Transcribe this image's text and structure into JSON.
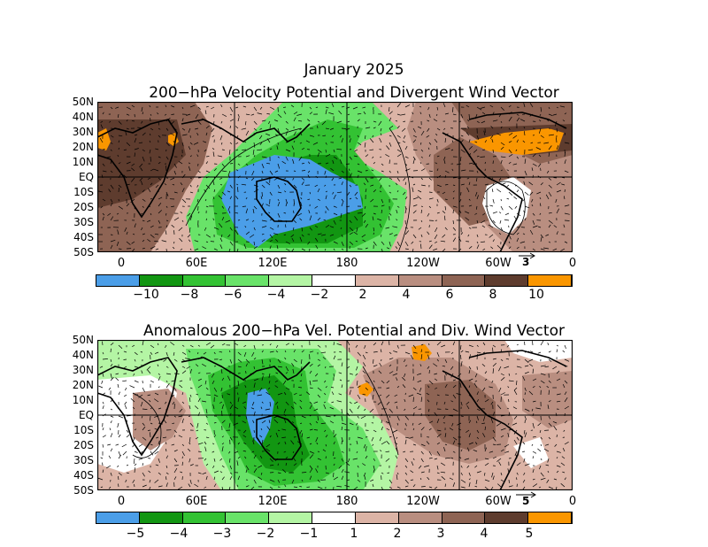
{
  "header": {
    "month_title": "January 2025"
  },
  "panels": [
    {
      "id": "top",
      "title": "200-hPa Velocity Potential and Divergent Wind Vector",
      "lat_labels": [
        "50N",
        "40N",
        "30N",
        "20N",
        "10N",
        "EQ",
        "10S",
        "20S",
        "30S",
        "40S",
        "50S"
      ],
      "lon_labels": [
        "0",
        "60E",
        "120E",
        "180",
        "120W",
        "60W",
        "0"
      ],
      "reference_vector_label": "3",
      "colorbar_labels": [
        "-10",
        "-8",
        "-6",
        "-4",
        "-2",
        "2",
        "4",
        "6",
        "8",
        "10"
      ],
      "colorbar_colors": [
        "#4b9ee8",
        "#129612",
        "#33c233",
        "#69e369",
        "#b4f5a4",
        "#ffffff",
        "#dcb4a6",
        "#b98e80",
        "#8e6454",
        "#5e3c2e",
        "#fa9600"
      ]
    },
    {
      "id": "bottom",
      "title": "Anomalous 200-hPa Vel. Potential and Div. Wind Vector",
      "lat_labels": [
        "50N",
        "40N",
        "30N",
        "20N",
        "10N",
        "EQ",
        "10S",
        "20S",
        "30S",
        "40S",
        "50S"
      ],
      "lon_labels": [
        "0",
        "60E",
        "120E",
        "180",
        "120W",
        "60W",
        "0"
      ],
      "reference_vector_label": "5",
      "colorbar_labels": [
        "-5",
        "-4",
        "-3",
        "-2",
        "-1",
        "1",
        "2",
        "3",
        "4",
        "5"
      ],
      "colorbar_colors": [
        "#4b9ee8",
        "#129612",
        "#33c233",
        "#69e369",
        "#b4f5a4",
        "#ffffff",
        "#dcb4a6",
        "#b98e80",
        "#8e6454",
        "#5e3c2e",
        "#fa9600"
      ]
    }
  ],
  "colors": {
    "frame": "#000000",
    "contour": "#000000"
  }
}
